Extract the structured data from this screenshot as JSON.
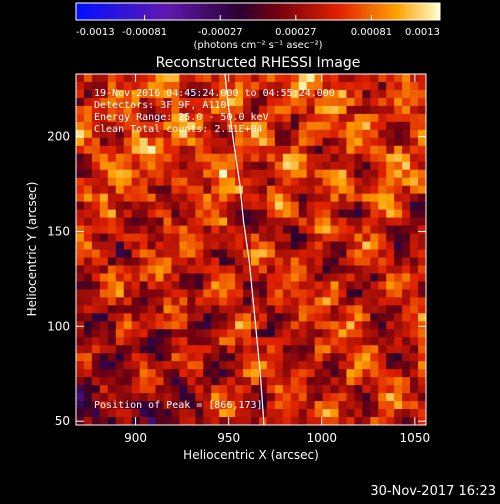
{
  "chart_data": {
    "type": "heatmap",
    "title": "Reconstructed RHESSI Image",
    "xlabel": "Heliocentric X (arcsec)",
    "ylabel": "Heliocentric Y (arcsec)",
    "xlim": [
      868,
      1056
    ],
    "ylim": [
      48,
      233
    ],
    "xticks": [
      900,
      950,
      1000,
      1050
    ],
    "yticks": [
      50,
      100,
      150,
      200
    ],
    "colorbar": {
      "ticks": [
        "-0.0013",
        "-0.00081",
        "-0.00027",
        "0.00027",
        "0.00081",
        "0.0013"
      ],
      "range": [
        -0.0013,
        0.0013
      ],
      "units": "(photons cm⁻² s⁻¹ asec⁻²)"
    },
    "annotations": [
      "19-Nov-2016 04:45:24.000 to 04:55:24.000",
      "Detectors: 3F 9F, A110",
      "Energy Range: 25.0 - 50.0 keV",
      "Clean     Total counts: 2.11E+04"
    ],
    "peak_label": "Position of Peak = [866,173]",
    "limb": [
      [
        948,
        233
      ],
      [
        950,
        215
      ],
      [
        953,
        195
      ],
      [
        956,
        175
      ],
      [
        958,
        155
      ],
      [
        961,
        135
      ],
      [
        963,
        115
      ],
      [
        965,
        95
      ],
      [
        967,
        75
      ],
      [
        969,
        48
      ]
    ]
  },
  "footer": {
    "timestamp": "30-Nov-2017 16:23"
  }
}
